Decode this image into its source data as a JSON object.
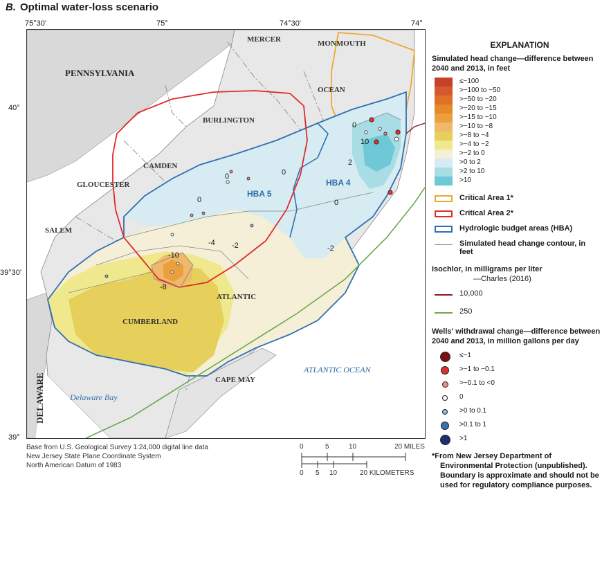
{
  "figure": {
    "panel_letter": "B.",
    "title": "Optimal water-loss scenario"
  },
  "graticule": {
    "longitudes": [
      "75°30'",
      "75°",
      "74°30'",
      "74°"
    ],
    "latitudes": [
      "40°",
      "39°30'",
      "39°"
    ]
  },
  "map_labels": {
    "states": [
      "PENNSYLVANIA",
      "DELAWARE"
    ],
    "counties": [
      "MERCER",
      "MONMOUTH",
      "OCEAN",
      "BURLINGTON",
      "CAMDEN",
      "GLOUCESTER",
      "SALEM",
      "ATLANTIC",
      "CUMBERLAND",
      "CAPE MAY"
    ],
    "water_bodies": [
      "ATLANTIC OCEAN",
      "Delaware Bay"
    ],
    "hydrologic_budget_areas": [
      "HBA 5",
      "HBA 4"
    ],
    "contour_labels": [
      "0",
      "0",
      "0",
      "0",
      "0",
      "10",
      "2",
      "-2",
      "-4",
      "-2",
      "-10",
      "-8"
    ]
  },
  "credits": [
    "Base from U.S. Geological Survey 1:24,000 digital line data",
    "New Jersey State Plane Coordinate System",
    "North American Datum of 1983"
  ],
  "scale_bar": {
    "miles_ticks": [
      "0",
      "5",
      "10",
      "20 MILES"
    ],
    "km_ticks": [
      "0",
      "5",
      "10",
      "20 KILOMETERS"
    ]
  },
  "legend": {
    "heading": "EXPLANATION",
    "head_change_title": "Simulated head change—difference between 2040 and 2013, in feet",
    "head_change_classes": [
      {
        "label": "≤−100",
        "color": "#c8402a"
      },
      {
        "label": ">−100 to −50",
        "color": "#d35a2c"
      },
      {
        "label": ">−50 to −20",
        "color": "#dd7126"
      },
      {
        "label": ">−20 to −15",
        "color": "#e58a2a"
      },
      {
        "label": ">−15 to −10",
        "color": "#eba03d"
      },
      {
        "label": ">−10 to −8",
        "color": "#efb86a"
      },
      {
        "label": ">−8 to −4",
        "color": "#e6cf5a"
      },
      {
        "label": ">−4 to −2",
        "color": "#efe88c"
      },
      {
        "label": ">−2 to 0",
        "color": "#f4efd6"
      },
      {
        "label": ">0 to 2",
        "color": "#d6ecf2"
      },
      {
        "label": ">2 to 10",
        "color": "#a9dde6"
      },
      {
        "label": ">10",
        "color": "#6ec8d6"
      }
    ],
    "critical_area_1": {
      "label": "Critical Area 1*",
      "color": "#f0a830"
    },
    "critical_area_2": {
      "label": "Critical Area 2*",
      "color": "#e02a2a"
    },
    "hba": {
      "label": "Hydrologic budget areas (HBA)",
      "color": "#2f6fb3"
    },
    "contour": {
      "label": "Simulated head change contour, in feet",
      "color": "#888888"
    },
    "isochlor_title": "Isochlor, in milligrams per liter",
    "isochlor_source": "—Charles (2016)",
    "isochlor_10000": {
      "label": "10,000",
      "color": "#8b1a1a"
    },
    "isochlor_250": {
      "label": "250",
      "color": "#6aa84f"
    },
    "wells_title": "Wells' withdrawal change—difference between 2040 and 2013, in million gallons per day",
    "wells_classes": [
      {
        "label": "≤−1",
        "color": "#7a1010"
      },
      {
        "label": ">−1 to −0.1",
        "color": "#e03030"
      },
      {
        "label": ">−0.1 to <0",
        "color": "#f08a8a"
      },
      {
        "label": "0",
        "color": "#ffffff"
      },
      {
        "label": ">0 to 0.1",
        "color": "#8fb8de"
      },
      {
        "label": ">0.1 to 1",
        "color": "#3a6fb0"
      },
      {
        "label": ">1",
        "color": "#1a2f6e"
      }
    ],
    "footnote": "*From New Jersey Department of Environmental Protection (unpublished). Boundary is approximate and should not be used for regulatory compliance purposes."
  },
  "colors": {
    "land_other": "#dcdcdc",
    "land_nj": "#e8e8e8",
    "water": "#ffffff",
    "county_boundary": "#8a8a8a"
  }
}
